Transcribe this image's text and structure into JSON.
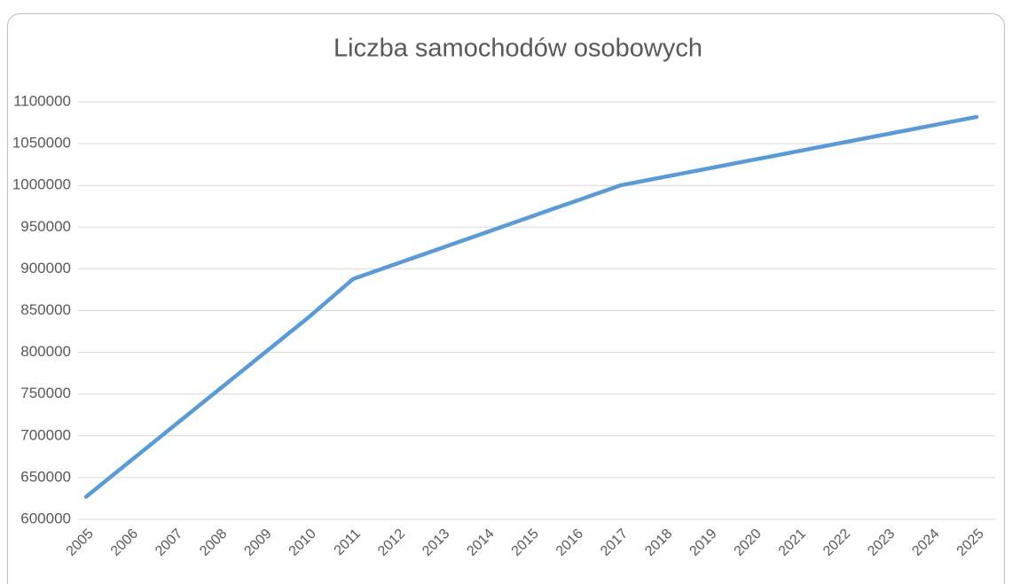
{
  "chart_data": {
    "type": "line",
    "title": "Liczba samochodów osobowych",
    "categories": [
      "2005",
      "2006",
      "2007",
      "2008",
      "2009",
      "2010",
      "2011",
      "2012",
      "2013",
      "2014",
      "2015",
      "2016",
      "2017",
      "2018",
      "2019",
      "2020",
      "2021",
      "2022",
      "2023",
      "2024",
      "2025"
    ],
    "series": [
      {
        "name": "Liczba samochodów osobowych",
        "color": "#5b9bd5",
        "values": [
          627000,
          670000,
          713000,
          756000,
          799000,
          842000,
          888000,
          906700,
          925300,
          944000,
          962700,
          981300,
          1000000,
          1010300,
          1020500,
          1030800,
          1041000,
          1051300,
          1061500,
          1071800,
          1082000
        ]
      }
    ],
    "ylim": [
      600000,
      1100000
    ],
    "yticks": [
      600000,
      650000,
      700000,
      750000,
      800000,
      850000,
      900000,
      950000,
      1000000,
      1050000,
      1100000
    ],
    "grid": true
  }
}
